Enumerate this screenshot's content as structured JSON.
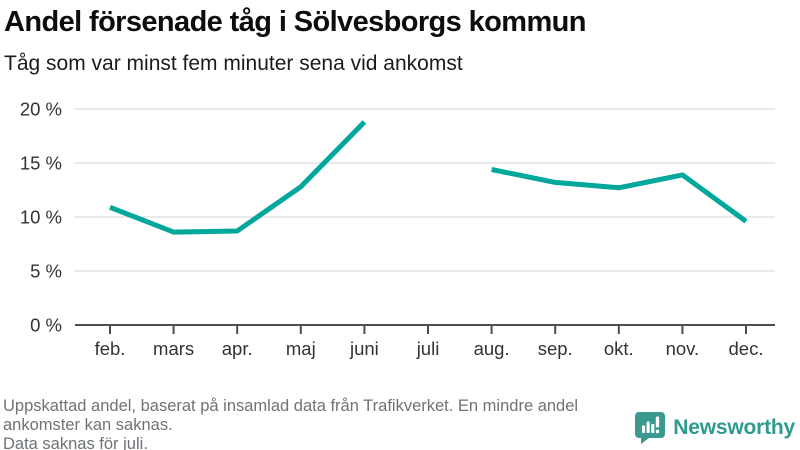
{
  "header": {
    "title": "Andel försenade tåg i Sölvesborgs kommun",
    "subtitle": "Tåg som var minst fem minuter sena vid ankomst"
  },
  "chart_data": {
    "type": "line",
    "title": "Andel försenade tåg i Sölvesborgs kommun",
    "subtitle": "Tåg som var minst fem minuter sena vid ankomst",
    "categories": [
      "feb.",
      "mars",
      "apr.",
      "maj",
      "juni",
      "juli",
      "aug.",
      "sep.",
      "okt.",
      "nov.",
      "dec."
    ],
    "values": [
      10.9,
      8.6,
      8.7,
      12.8,
      18.8,
      null,
      14.4,
      13.2,
      12.7,
      13.9,
      9.6
    ],
    "unit": "%",
    "xlabel": "",
    "ylabel": "",
    "ylim": [
      0,
      20
    ],
    "yticks": [
      0,
      5,
      10,
      15,
      20
    ],
    "ytick_format": "{v} %",
    "grid": true,
    "legend": false,
    "missing_data_note": "Data saknas för juli."
  },
  "footer": {
    "notes": [
      "Uppskattad andel, baserat på insamlad data från Trafikverket. En mindre andel",
      "ankomster kan saknas.",
      "Data saknas för juli."
    ],
    "logo_text": "Newsworthy"
  },
  "colors": {
    "line": "#00a79b",
    "grid": "#e3e3e3",
    "axis": "#4d4d4d",
    "tick_label": "#333333",
    "footer_text": "#6e7377",
    "logo": "#2f9a8f",
    "logo_icon": "#3a9a8f"
  }
}
